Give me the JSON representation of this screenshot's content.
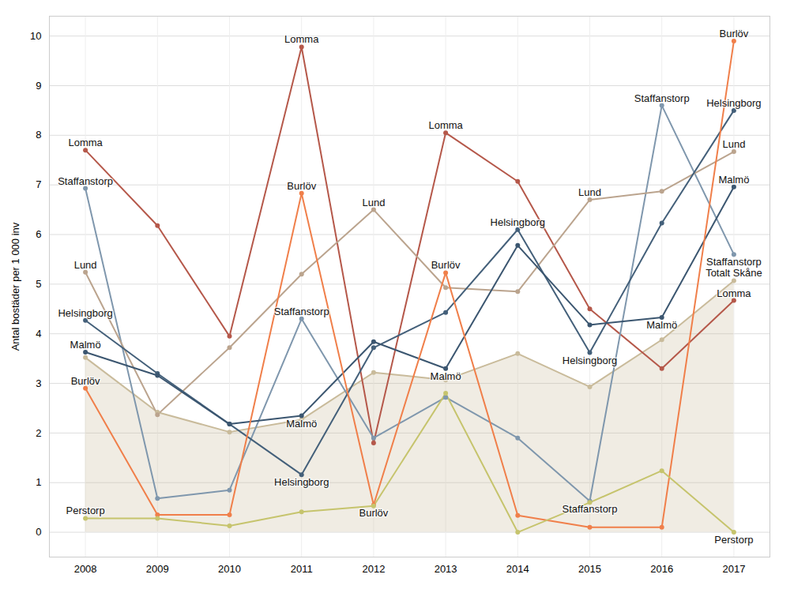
{
  "chart_data": {
    "type": "line",
    "y_label": "Antal bostäder per 1 000 inv",
    "x": [
      2008,
      2009,
      2010,
      2011,
      2012,
      2013,
      2014,
      2015,
      2016,
      2017
    ],
    "xlim": [
      2007.5,
      2017.5
    ],
    "xticks": [
      2008,
      2009,
      2010,
      2011,
      2012,
      2013,
      2014,
      2015,
      2016,
      2017
    ],
    "ylim": [
      -0.5,
      10.4
    ],
    "yticks": [
      0,
      1,
      2,
      3,
      4,
      5,
      6,
      7,
      8,
      9,
      10
    ],
    "grid": true,
    "marker": "circle",
    "series": [
      {
        "name": "Totalt Skåne",
        "type": "area",
        "color": "#c9bb9b",
        "values": [
          3.52,
          2.42,
          2.02,
          2.27,
          3.22,
          3.07,
          3.6,
          2.93,
          3.88,
          5.07
        ]
      },
      {
        "name": "Lomma",
        "type": "line",
        "color": "#b5584a",
        "values": [
          7.7,
          6.18,
          3.95,
          9.78,
          1.8,
          8.05,
          7.07,
          4.5,
          3.3,
          4.67
        ]
      },
      {
        "name": "Staffanstorp",
        "type": "line",
        "color": "#7f97ad",
        "values": [
          6.93,
          0.68,
          0.85,
          4.3,
          1.9,
          2.72,
          1.9,
          0.63,
          8.6,
          5.6
        ]
      },
      {
        "name": "Lund",
        "type": "line",
        "color": "#bba48e",
        "values": [
          5.24,
          2.37,
          3.72,
          5.2,
          6.5,
          4.93,
          4.85,
          6.7,
          6.87,
          7.67
        ]
      },
      {
        "name": "Helsingborg",
        "type": "line",
        "color": "#44607a",
        "values": [
          4.27,
          3.2,
          2.18,
          1.16,
          3.72,
          4.43,
          6.1,
          3.62,
          6.23,
          8.5
        ]
      },
      {
        "name": "Malmö",
        "type": "line",
        "color": "#3b5670",
        "values": [
          3.63,
          3.16,
          2.18,
          2.35,
          3.84,
          3.3,
          5.78,
          4.18,
          4.33,
          6.96
        ]
      },
      {
        "name": "Burlöv",
        "type": "line",
        "color": "#f07f4a",
        "values": [
          2.9,
          0.35,
          0.35,
          6.83,
          0.55,
          5.23,
          0.34,
          0.1,
          0.1,
          9.9
        ]
      },
      {
        "name": "Perstorp",
        "type": "line",
        "color": "#c6c46d",
        "values": [
          0.28,
          0.28,
          0.13,
          0.41,
          0.53,
          2.8,
          0,
          0.6,
          1.24,
          0
        ]
      }
    ],
    "annotations": [
      {
        "series": "Lomma",
        "x": 2008
      },
      {
        "series": "Lomma",
        "x": 2011
      },
      {
        "series": "Lomma",
        "x": 2013
      },
      {
        "series": "Lomma",
        "x": 2017
      },
      {
        "series": "Staffanstorp",
        "x": 2008
      },
      {
        "series": "Staffanstorp",
        "x": 2011
      },
      {
        "series": "Staffanstorp",
        "x": 2015
      },
      {
        "series": "Staffanstorp",
        "x": 2016
      },
      {
        "series": "Staffanstorp",
        "x": 2017
      },
      {
        "series": "Lund",
        "x": 2008
      },
      {
        "series": "Lund",
        "x": 2012
      },
      {
        "series": "Lund",
        "x": 2015
      },
      {
        "series": "Lund",
        "x": 2017
      },
      {
        "series": "Helsingborg",
        "x": 2008
      },
      {
        "series": "Helsingborg",
        "x": 2011
      },
      {
        "series": "Helsingborg",
        "x": 2014
      },
      {
        "series": "Helsingborg",
        "x": 2015
      },
      {
        "series": "Helsingborg",
        "x": 2017
      },
      {
        "series": "Malmö",
        "x": 2008
      },
      {
        "series": "Malmö",
        "x": 2011
      },
      {
        "series": "Malmö",
        "x": 2013
      },
      {
        "series": "Malmö",
        "x": 2016
      },
      {
        "series": "Malmö",
        "x": 2017
      },
      {
        "series": "Burlöv",
        "x": 2008
      },
      {
        "series": "Burlöv",
        "x": 2011
      },
      {
        "series": "Burlöv",
        "x": 2012
      },
      {
        "series": "Burlöv",
        "x": 2013
      },
      {
        "series": "Burlöv",
        "x": 2017
      },
      {
        "series": "Perstorp",
        "x": 2008
      },
      {
        "series": "Perstorp",
        "x": 2017
      },
      {
        "series": "Totalt Skåne",
        "x": 2017
      }
    ]
  }
}
